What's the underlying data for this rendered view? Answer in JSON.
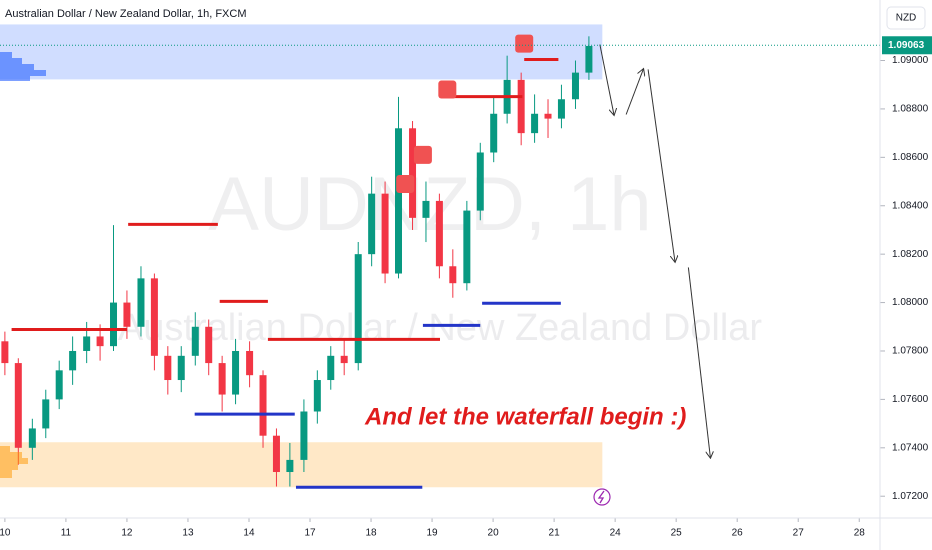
{
  "chart_data": {
    "type": "candlestick",
    "title": "Australian Dollar / New Zealand Dollar, 1h, FXCM",
    "currency": "NZD",
    "watermark": "AUDNZD, 1h",
    "watermark_subtitle": "Australian Dollar / New Zealand Dollar",
    "annotation": "And let the waterfall begin :)",
    "last_price": {
      "value": 1.09063,
      "label": "1.09063"
    },
    "xlim": [
      -0.08,
      14.34
    ],
    "ylim": [
      1.0711,
      1.0925
    ],
    "xticks": [
      {
        "value": 0,
        "label": "10"
      },
      {
        "value": 1,
        "label": "11"
      },
      {
        "value": 2,
        "label": "12"
      },
      {
        "value": 3,
        "label": "13"
      },
      {
        "value": 4,
        "label": "14"
      },
      {
        "value": 5,
        "label": "17"
      },
      {
        "value": 6,
        "label": "18"
      },
      {
        "value": 7,
        "label": "19"
      },
      {
        "value": 8,
        "label": "20"
      },
      {
        "value": 9,
        "label": "21"
      },
      {
        "value": 10,
        "label": "24"
      },
      {
        "value": 11,
        "label": "25"
      },
      {
        "value": 12,
        "label": "26"
      },
      {
        "value": 13,
        "label": "27"
      },
      {
        "value": 14,
        "label": "28"
      }
    ],
    "yticks": [
      {
        "value": 1.072,
        "label": "1.07200"
      },
      {
        "value": 1.074,
        "label": "1.07400"
      },
      {
        "value": 1.076,
        "label": "1.07600"
      },
      {
        "value": 1.078,
        "label": "1.07800"
      },
      {
        "value": 1.08,
        "label": "1.08000"
      },
      {
        "value": 1.082,
        "label": "1.08200"
      },
      {
        "value": 1.084,
        "label": "1.08400"
      },
      {
        "value": 1.086,
        "label": "1.08600"
      },
      {
        "value": 1.088,
        "label": "1.08800"
      },
      {
        "value": 1.09,
        "label": "1.09000"
      }
    ],
    "up_color": "#089981",
    "down_color": "#f23645",
    "candles": {
      "x": [
        0,
        0.22,
        0.45,
        0.67,
        0.89,
        1.11,
        1.34,
        1.56,
        1.78,
        2.0,
        2.23,
        2.45,
        2.67,
        2.89,
        3.12,
        3.34,
        3.56,
        3.78,
        4.01,
        4.23,
        4.45,
        4.67,
        4.9,
        5.12,
        5.34,
        5.56,
        5.79,
        6.01,
        6.23,
        6.45,
        6.68,
        6.9,
        7.12,
        7.34,
        7.57,
        7.79,
        8.01,
        8.23,
        8.46,
        8.68,
        8.9,
        9.12,
        9.35,
        9.57
      ],
      "open": [
        1.0784,
        1.0775,
        1.074,
        1.0748,
        1.076,
        1.0772,
        1.078,
        1.0786,
        1.0782,
        1.08,
        1.079,
        1.081,
        1.0778,
        1.0768,
        1.0778,
        1.079,
        1.0775,
        1.0762,
        1.078,
        1.077,
        1.0745,
        1.073,
        1.0735,
        1.0755,
        1.0768,
        1.0778,
        1.0775,
        1.082,
        1.0845,
        1.0812,
        1.0872,
        1.0835,
        1.0842,
        1.0815,
        1.0808,
        1.0838,
        1.0862,
        1.0878,
        1.0892,
        1.087,
        1.0878,
        1.0876,
        1.0884,
        1.0895
      ],
      "high": [
        1.0788,
        1.0777,
        1.0752,
        1.0764,
        1.0776,
        1.0786,
        1.0792,
        1.0791,
        1.0832,
        1.0805,
        1.0815,
        1.0812,
        1.0782,
        1.0782,
        1.0796,
        1.0793,
        1.0778,
        1.0785,
        1.0784,
        1.0772,
        1.0748,
        1.0742,
        1.076,
        1.0772,
        1.0782,
        1.0785,
        1.0825,
        1.0852,
        1.085,
        1.0885,
        1.0875,
        1.085,
        1.0845,
        1.0822,
        1.0842,
        1.0866,
        1.0885,
        1.0902,
        1.0895,
        1.0886,
        1.0884,
        1.089,
        1.09,
        1.091
      ],
      "low": [
        1.077,
        1.0733,
        1.0735,
        1.0744,
        1.0756,
        1.0766,
        1.0775,
        1.0776,
        1.078,
        1.0785,
        1.0786,
        1.0772,
        1.0762,
        1.0763,
        1.0774,
        1.077,
        1.0755,
        1.0758,
        1.0765,
        1.074,
        1.0724,
        1.0724,
        1.073,
        1.075,
        1.0764,
        1.077,
        1.0772,
        1.0815,
        1.0808,
        1.081,
        1.083,
        1.0825,
        1.081,
        1.0802,
        1.0805,
        1.0834,
        1.0858,
        1.0874,
        1.0865,
        1.0866,
        1.0868,
        1.0872,
        1.088,
        1.0892
      ],
      "close": [
        1.0775,
        1.074,
        1.0748,
        1.076,
        1.0772,
        1.078,
        1.0786,
        1.0782,
        1.08,
        1.079,
        1.081,
        1.0778,
        1.0768,
        1.0778,
        1.079,
        1.0775,
        1.0762,
        1.078,
        1.077,
        1.0745,
        1.073,
        1.0735,
        1.0755,
        1.0768,
        1.0778,
        1.0775,
        1.082,
        1.0845,
        1.0812,
        1.0872,
        1.0835,
        1.0842,
        1.0815,
        1.0808,
        1.0838,
        1.0862,
        1.0878,
        1.0892,
        1.087,
        1.0878,
        1.0876,
        1.0884,
        1.0895,
        1.0906
      ]
    },
    "zones": [
      {
        "color": "#2962ff",
        "x": [
          -0.08,
          9.79
        ],
        "y": [
          1.08922,
          1.09149
        ]
      },
      {
        "color": "#ff9800",
        "x": [
          -0.08,
          9.79
        ],
        "y": [
          1.07237,
          1.07423
        ]
      }
    ],
    "levels": [
      {
        "color": "#e01c1c",
        "x": [
          0.11,
          2.0
        ],
        "y": 1.07889
      },
      {
        "color": "#e01c1c",
        "x": [
          2.02,
          3.49
        ],
        "y": 1.08323
      },
      {
        "color": "#e01c1c",
        "x": [
          3.52,
          4.31
        ],
        "y": 1.08005
      },
      {
        "color": "#e01c1c",
        "x": [
          4.31,
          7.13
        ],
        "y": 1.07848
      },
      {
        "color": "#e01c1c",
        "x": [
          7.21,
          8.48
        ],
        "y": 1.08851
      },
      {
        "color": "#e01c1c",
        "x": [
          8.51,
          9.07
        ],
        "y": 1.09004
      },
      {
        "color": "#2335c8",
        "x": [
          3.11,
          4.75
        ],
        "y": 1.07539
      },
      {
        "color": "#2335c8",
        "x": [
          4.77,
          6.84
        ],
        "y": 1.07237
      },
      {
        "color": "#2335c8",
        "x": [
          6.85,
          7.79
        ],
        "y": 1.07906
      },
      {
        "color": "#2335c8",
        "x": [
          7.82,
          9.11
        ],
        "y": 1.07997
      }
    ],
    "markers": {
      "color": "#f05252",
      "x": [
        6.56,
        6.85,
        7.25,
        8.51
      ],
      "y": [
        1.0849,
        1.0861,
        1.0888,
        1.0907
      ]
    },
    "projection": [
      {
        "x": [
          9.75,
          9.98
        ],
        "y": [
          1.09066,
          1.08777
        ]
      },
      {
        "x": [
          10.18,
          10.46
        ],
        "y": [
          1.08777,
          1.08963
        ]
      },
      {
        "x": [
          10.54,
          10.98
        ],
        "y": [
          1.08963,
          1.0817
        ]
      },
      {
        "x": [
          11.2,
          11.56
        ],
        "y": [
          1.08145,
          1.07361
        ]
      }
    ]
  }
}
